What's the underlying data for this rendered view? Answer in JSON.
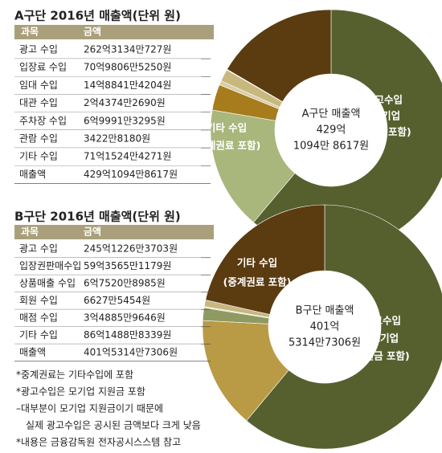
{
  "chart_data": [
    {
      "type": "donut",
      "title": "A구단 2016년 매출액(단위 원)",
      "columns": [
        "과목",
        "금액"
      ],
      "categories": [
        "광고 수입",
        "입장료 수입",
        "임대 수입",
        "대관 수입",
        "주차장 수입",
        "관람 수입",
        "기타 수입"
      ],
      "values": [
        26231340727,
        7098065250,
        1488414204,
        243742690,
        699913295,
        34228180,
        7115244271
      ],
      "value_labels": [
        "262억3134만727원",
        "70억9806만5250원",
        "14억8841만4204원",
        "2억4374만2690원",
        "6억9991만3295원",
        "3422만8180원",
        "71억1524만4271원"
      ],
      "colors": [
        "#56602f",
        "#a9b67c",
        "#a67c1c",
        "#d8cfa8",
        "#c9b87e",
        "#e6e0c6",
        "#5b3b10"
      ],
      "total": {
        "category": "매출액",
        "value": 42910948617,
        "label": "429억1094만8617원"
      },
      "center_lines": [
        "A구단 매출액",
        "429억",
        "1094만 8617원"
      ],
      "annotations": [
        [
          "광고수입",
          "(모기업",
          "지원금 포함)"
        ],
        [
          "기타 수입",
          "(중계권료 포함)"
        ]
      ]
    },
    {
      "type": "donut",
      "title": "B구단 2016년 매출액(단위 원)",
      "columns": [
        "과목",
        "금액"
      ],
      "categories": [
        "광고 수입",
        "입장권판매수입",
        "상품매출 수입",
        "회원 수입",
        "매점 수입",
        "기타 수입"
      ],
      "values": [
        24512263703,
        5935651179,
        675208985,
        66275454,
        348859646,
        8614888339
      ],
      "value_labels": [
        "245억1226만3703원",
        "59억3565만1179원",
        "6억7520만8985원",
        "6627만5454원",
        "3억4885만9646원",
        "86억1488만8339원"
      ],
      "colors": [
        "#56602f",
        "#b99a45",
        "#8f9a63",
        "#e3dcc0",
        "#c8b77e",
        "#5b3b10"
      ],
      "total": {
        "category": "매출액",
        "value": 40153147306,
        "label": "401억5314만7306원"
      },
      "center_lines": [
        "B구단 매출액",
        "401억",
        "5314만7306원"
      ],
      "annotations": [
        [
          "광고수입",
          "(모기업",
          "지원금 포함)"
        ],
        [
          "기타 수입",
          "(중계권료 포함)"
        ]
      ]
    }
  ],
  "footnotes": [
    "*중계권료는 기타수입에 포함",
    "*광고수입은 모기업 지원금 포함",
    "–대부분이 모기업 지원금이기 때문에",
    "실제 광고수입은 공시된 금액보다 크게 낮음",
    "*내용은 금융감독원 전자공시스스템 참고"
  ]
}
